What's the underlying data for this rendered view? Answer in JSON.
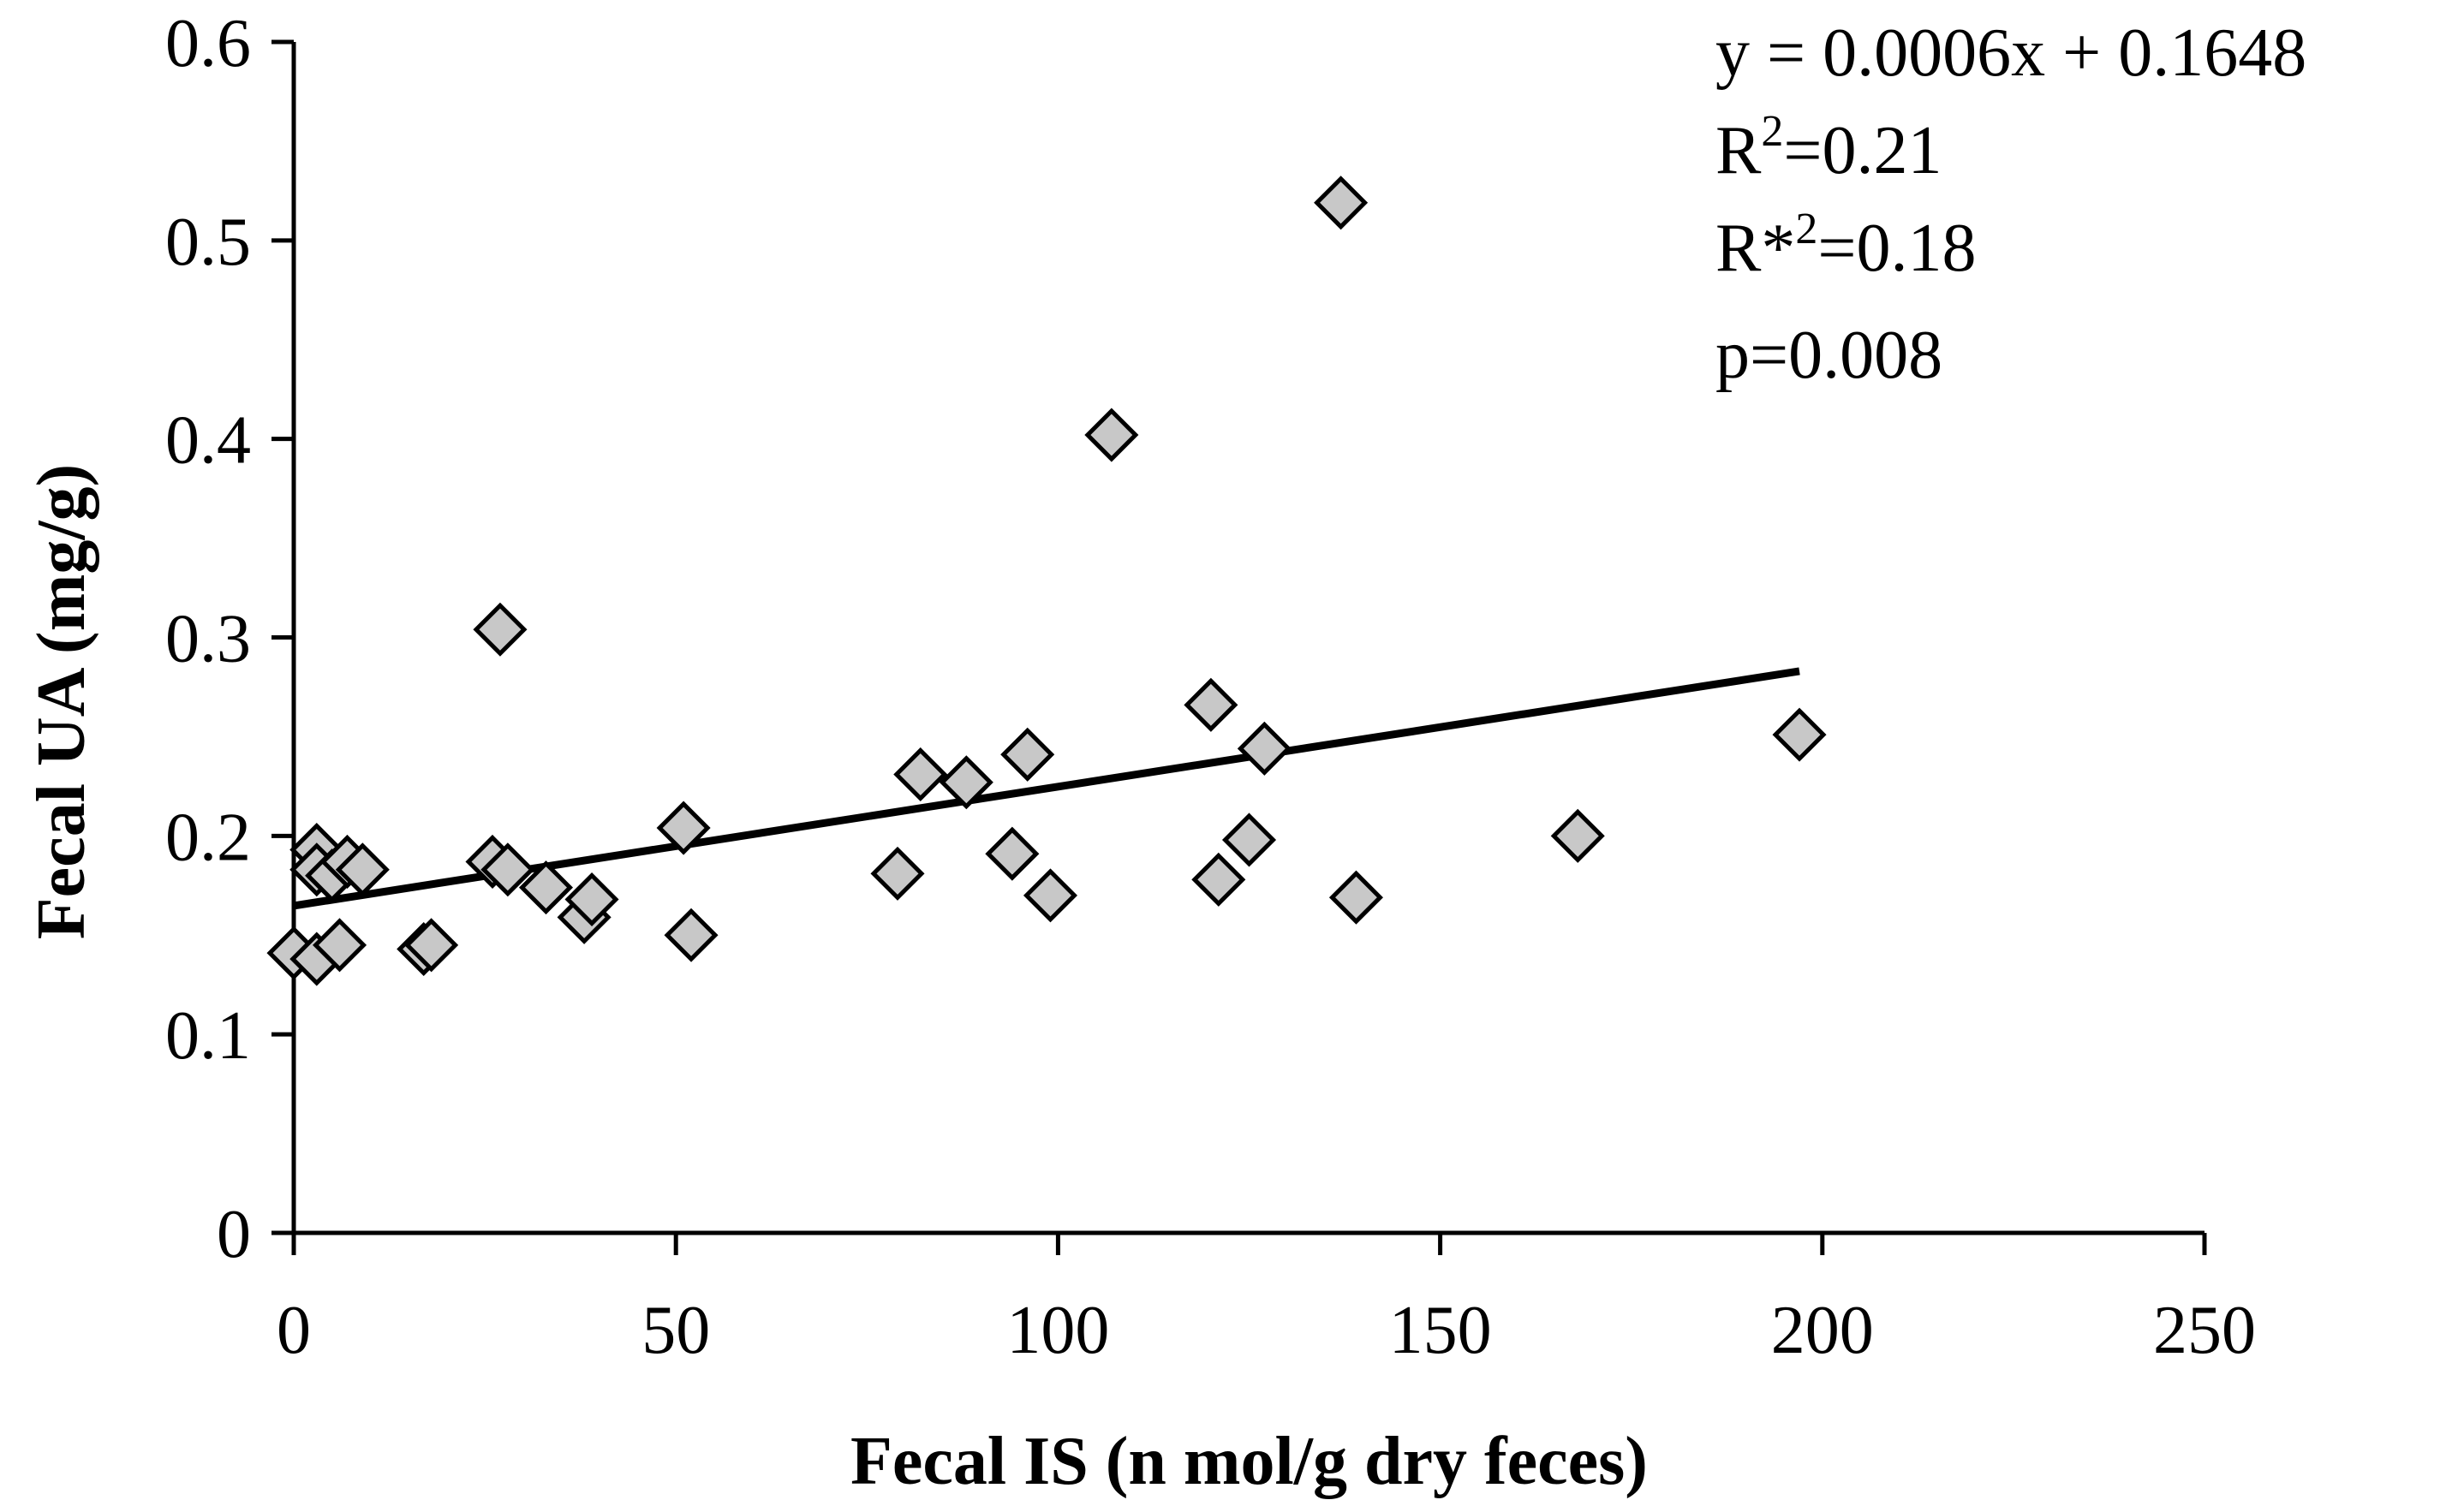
{
  "chart_data": {
    "type": "scatter",
    "title": "",
    "xlabel": "Fecal IS (n mol/g dry feces)",
    "ylabel": "Fecal UA (mg/g)",
    "xlim": [
      0,
      250
    ],
    "ylim": [
      0,
      0.6
    ],
    "xticks": [
      0,
      50,
      100,
      150,
      200,
      250
    ],
    "yticks": [
      0,
      0.1,
      0.2,
      0.3,
      0.4,
      0.5,
      0.6
    ],
    "xtick_labels": [
      "0",
      "50",
      "100",
      "150",
      "200",
      "250"
    ],
    "ytick_labels": [
      "0",
      "0.1",
      "0.2",
      "0.3",
      "0.4",
      "0.5",
      "0.6"
    ],
    "grid": false,
    "marker": "diamond",
    "marker_color": "#c8c8c8",
    "series": [
      {
        "name": "samples",
        "points": [
          {
            "x": 0,
            "y": 0.141
          },
          {
            "x": 3,
            "y": 0.138
          },
          {
            "x": 3,
            "y": 0.193
          },
          {
            "x": 3,
            "y": 0.183
          },
          {
            "x": 5,
            "y": 0.18
          },
          {
            "x": 6,
            "y": 0.145
          },
          {
            "x": 7,
            "y": 0.187
          },
          {
            "x": 9,
            "y": 0.183
          },
          {
            "x": 17,
            "y": 0.143
          },
          {
            "x": 18,
            "y": 0.145
          },
          {
            "x": 26,
            "y": 0.187
          },
          {
            "x": 27,
            "y": 0.304
          },
          {
            "x": 28,
            "y": 0.183
          },
          {
            "x": 33,
            "y": 0.174
          },
          {
            "x": 38,
            "y": 0.159
          },
          {
            "x": 39,
            "y": 0.168
          },
          {
            "x": 51,
            "y": 0.204
          },
          {
            "x": 52,
            "y": 0.15
          },
          {
            "x": 79,
            "y": 0.181
          },
          {
            "x": 82,
            "y": 0.231
          },
          {
            "x": 88,
            "y": 0.227
          },
          {
            "x": 94,
            "y": 0.191
          },
          {
            "x": 96,
            "y": 0.241
          },
          {
            "x": 99,
            "y": 0.17
          },
          {
            "x": 107,
            "y": 0.402
          },
          {
            "x": 120,
            "y": 0.266
          },
          {
            "x": 121,
            "y": 0.178
          },
          {
            "x": 125,
            "y": 0.198
          },
          {
            "x": 127,
            "y": 0.244
          },
          {
            "x": 137,
            "y": 0.519
          },
          {
            "x": 139,
            "y": 0.169
          },
          {
            "x": 168,
            "y": 0.2
          },
          {
            "x": 197,
            "y": 0.251
          }
        ]
      }
    ],
    "trendline": {
      "type": "linear",
      "slope": 0.0006,
      "intercept": 0.1648,
      "x_range": [
        0,
        197
      ]
    },
    "annotations": {
      "equation": "y = 0.0006x + 0.1648",
      "r2_prefix": "R",
      "r2_sup": "2",
      "r2_value": "=0.21",
      "rstar2_prefix": "R*",
      "rstar2_sup": "2",
      "rstar2_value": "=0.18",
      "p_value": "p=0.008"
    }
  }
}
